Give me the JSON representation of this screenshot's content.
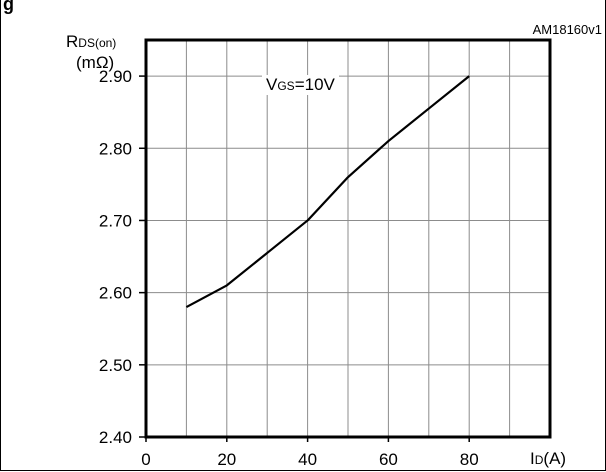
{
  "header": {
    "title_fragment": "g",
    "figure_id": "AM18160v1"
  },
  "chart_data": {
    "type": "line",
    "ylabel_main": "R",
    "ylabel_sub": "DS(on)",
    "ylabel_unit": "(mΩ)",
    "xlabel_main": "I",
    "xlabel_sub": "D",
    "xlabel_unit": "(A)",
    "annotation_main": "V",
    "annotation_sub": "GS",
    "annotation_value": "=10V",
    "xlim": [
      0,
      100
    ],
    "ylim": [
      2.4,
      2.95
    ],
    "x_ticks": [
      0,
      20,
      40,
      60,
      80
    ],
    "x_tick_labels": [
      "0",
      "20",
      "40",
      "60",
      "80"
    ],
    "y_ticks": [
      2.4,
      2.5,
      2.6,
      2.7,
      2.8,
      2.9
    ],
    "y_tick_labels": [
      "2.40",
      "2.50",
      "2.60",
      "2.70",
      "2.80",
      "2.90"
    ],
    "grid": true,
    "series": [
      {
        "x": [
          10,
          20,
          30,
          40,
          50,
          60,
          70,
          80
        ],
        "y": [
          2.58,
          2.61,
          2.655,
          2.7,
          2.76,
          2.81,
          2.855,
          2.9
        ]
      }
    ],
    "line_color": "#000000"
  }
}
